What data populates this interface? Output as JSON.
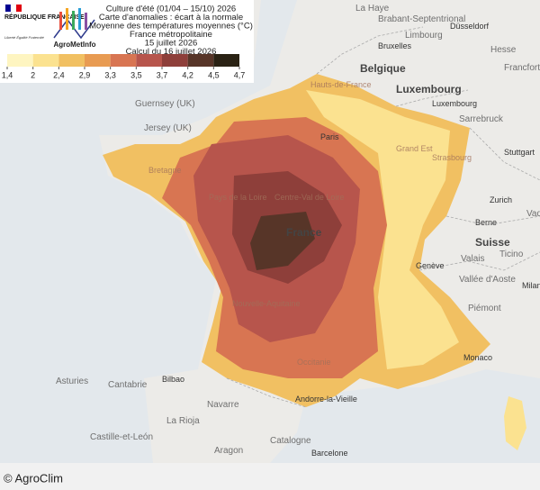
{
  "header": {
    "republic": "RÉPUBLIQUE FRANÇAISE",
    "motto": "Liberté Égalité Fraternité",
    "brand": "AgroMetInfo",
    "title_lines": [
      "Culture d'été (01/04 – 15/10) 2026",
      "Carte d'anomalies : écart à la normale",
      "Moyenne des températures moyennes (°C)",
      "France métropolitaine",
      "15 juillet 2026",
      "Calcul du 16 juillet 2026"
    ]
  },
  "legend": {
    "colors": [
      "#fef5c1",
      "#fbe290",
      "#f1c062",
      "#e89b52",
      "#d87552",
      "#b7554c",
      "#8e3f3a",
      "#573528",
      "#2a2214"
    ],
    "ticks": [
      {
        "value": 1.4,
        "label": "1,4"
      },
      2,
      {
        "value": 2.4,
        "label": "2,4"
      },
      {
        "value": 2.9,
        "label": "2,9"
      },
      {
        "value": 3.3,
        "label": "3,3"
      },
      {
        "value": 3.5,
        "label": "3,5"
      },
      {
        "value": 3.7,
        "label": "3,7"
      },
      {
        "value": 4.2,
        "label": "4,2"
      },
      {
        "value": 4.5,
        "label": "4,5"
      },
      {
        "value": 4.7,
        "label": "4,7"
      }
    ]
  },
  "places": [
    "La Haye",
    "Brabant-Septentrional",
    "Limbourg",
    "Düsseldorf",
    "Bruxelles",
    "Belgique",
    "Hesse",
    "Francfort-sur-le-Main",
    "Luxembourg",
    "Luxembourg",
    "Sarrebruck",
    "Guernsey (UK)",
    "Jersey (UK)",
    "Hauts-de-France",
    "Paris",
    "Strasbourg",
    "Stuttgart",
    "Bretagne",
    "Pays de la Loire",
    "Centre-Val de Loire",
    "France",
    "Zurich",
    "Berne",
    "Suisse",
    "Vaduz",
    "Genève",
    "Valais",
    "Ticino",
    "Vallée d'Aoste",
    "Milan",
    "Piémont",
    "Bilbao",
    "Asturies",
    "Cantabrie",
    "Navarre",
    "Monaco",
    "Andorre-la-Vieille",
    "La Rioja",
    "Castille-et-León",
    "Aragon",
    "Catalogne",
    "Barcelone",
    "Grand Est",
    "Nouvelle-Aquitaine",
    "Occitanie"
  ],
  "footer": "© AgroClim"
}
